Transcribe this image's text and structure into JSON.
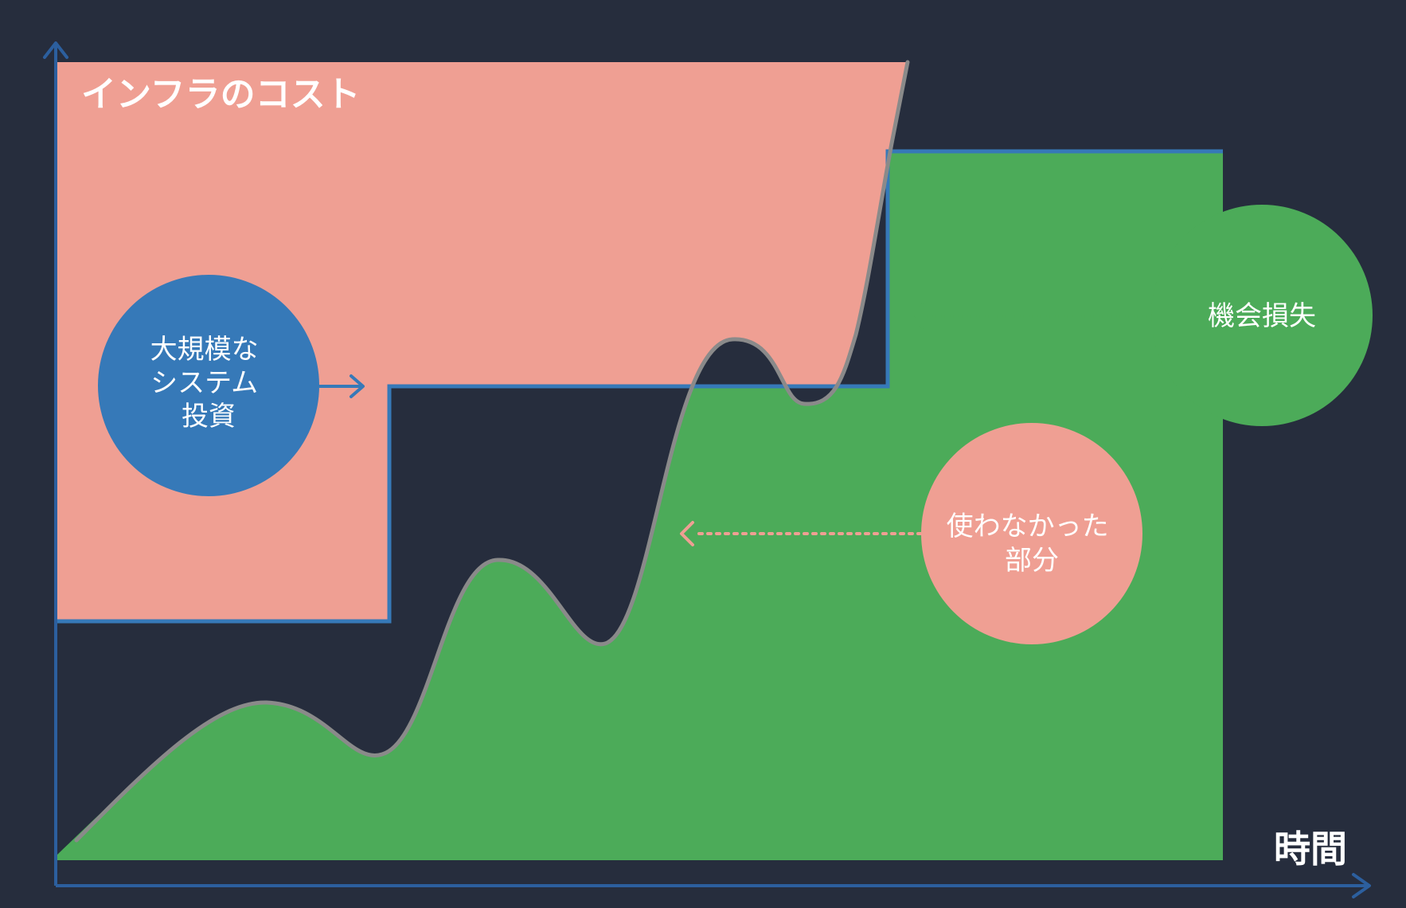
{
  "y_axis_label": "インフラのコスト",
  "x_axis_label": "時間",
  "callouts": {
    "big_investment": {
      "lines": [
        "大規模な",
        "システム",
        "投資"
      ],
      "color": "#3679b8"
    },
    "opportunity_loss": {
      "lines": [
        "機会損失"
      ],
      "color": "#4cab59"
    },
    "unused_portion": {
      "lines": [
        "使わなかった",
        "部分"
      ],
      "color": "#ef9f93"
    }
  },
  "colors": {
    "background": "#262d3d",
    "axis": "#2c5f9e",
    "capacity_line": "#3679b8",
    "demand_curve": "#8a8a8a",
    "unused_fill": "#ef9f93",
    "shortage_fill": "#4cab59"
  }
}
